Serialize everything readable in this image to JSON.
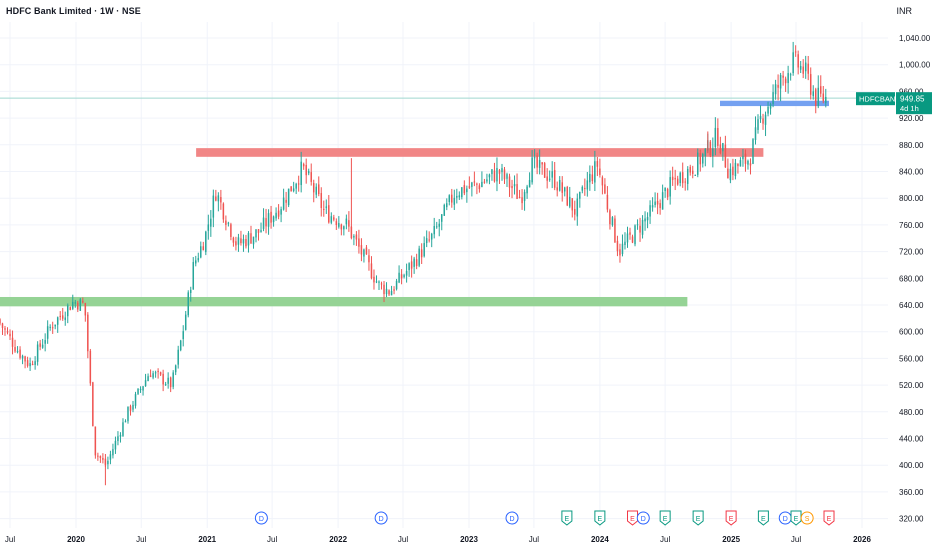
{
  "header": {
    "title": "HDFC Bank Limited · 1W · NSE",
    "currency": "INR"
  },
  "price_tag": {
    "symbol": "HDFCBANK",
    "price": "949.85",
    "countdown": "4d 1h"
  },
  "colors": {
    "up": "#26a69a",
    "down": "#ef5350",
    "resistance_zone": "#f08080",
    "support_zone": "#8fd18f",
    "blue_zone": "#6d9cf0",
    "price_tag": "#089981",
    "grid": "#f0f3fa"
  },
  "chart_data": {
    "type": "candlestick",
    "title": "HDFC Bank Limited · 1W · NSE",
    "ylim": [
      310,
      1070
    ],
    "y_ticks": [
      "1,040.00",
      "1,000.00",
      "960.00",
      "920.00",
      "880.00",
      "840.00",
      "800.00",
      "760.00",
      "720.00",
      "680.00",
      "640.00",
      "600.00",
      "560.00",
      "520.00",
      "480.00",
      "440.00",
      "400.00",
      "360.00",
      "320.00"
    ],
    "x_ticks": [
      {
        "label": "Jul",
        "date": "2019-07"
      },
      {
        "label": "2020",
        "date": "2020-01"
      },
      {
        "label": "Jul",
        "date": "2020-07"
      },
      {
        "label": "2021",
        "date": "2021-01"
      },
      {
        "label": "Jul",
        "date": "2021-07"
      },
      {
        "label": "2022",
        "date": "2022-01"
      },
      {
        "label": "Jul",
        "date": "2022-07"
      },
      {
        "label": "2023",
        "date": "2023-01"
      },
      {
        "label": "Jul",
        "date": "2023-07"
      },
      {
        "label": "2024",
        "date": "2024-01"
      },
      {
        "label": "Jul",
        "date": "2024-07"
      },
      {
        "label": "2025",
        "date": "2025-01"
      },
      {
        "label": "Jul",
        "date": "2025-07"
      },
      {
        "label": "2026",
        "date": "2026-01"
      }
    ],
    "anchors": [
      [
        "2019-06",
        620
      ],
      [
        "2019-08",
        570
      ],
      [
        "2019-09",
        550
      ],
      [
        "2019-11",
        610
      ],
      [
        "2020-01",
        645
      ],
      [
        "2020-02",
        640
      ],
      [
        "2020-03",
        420
      ],
      [
        "2020-04",
        400
      ],
      [
        "2020-06",
        480
      ],
      [
        "2020-08",
        540
      ],
      [
        "2020-10",
        520
      ],
      [
        "2020-11",
        600
      ],
      [
        "2020-12",
        700
      ],
      [
        "2021-01",
        740
      ],
      [
        "2021-02",
        810
      ],
      [
        "2021-04",
        730
      ],
      [
        "2021-06",
        750
      ],
      [
        "2021-08",
        790
      ],
      [
        "2021-10",
        845
      ],
      [
        "2021-12",
        780
      ],
      [
        "2022-02",
        760
      ],
      [
        "2022-04",
        700
      ],
      [
        "2022-05",
        670
      ],
      [
        "2022-06",
        660
      ],
      [
        "2022-08",
        700
      ],
      [
        "2022-10",
        745
      ],
      [
        "2022-12",
        810
      ],
      [
        "2023-02",
        820
      ],
      [
        "2023-04",
        840
      ],
      [
        "2023-06",
        800
      ],
      [
        "2023-07",
        850
      ],
      [
        "2023-09",
        830
      ],
      [
        "2023-11",
        780
      ],
      [
        "2023-12",
        820
      ],
      [
        "2024-01",
        850
      ],
      [
        "2024-03",
        720
      ],
      [
        "2024-04",
        740
      ],
      [
        "2024-06",
        780
      ],
      [
        "2024-08",
        825
      ],
      [
        "2024-10",
        850
      ],
      [
        "2024-11",
        870
      ],
      [
        "2024-12",
        895
      ],
      [
        "2025-01",
        840
      ],
      [
        "2025-02",
        850
      ],
      [
        "2025-03",
        860
      ],
      [
        "2025-04",
        920
      ],
      [
        "2025-06",
        980
      ],
      [
        "2025-07",
        1005
      ],
      [
        "2025-08",
        990
      ],
      [
        "2025-09",
        950
      ]
    ],
    "wick_spikes": [
      {
        "date": "2020-03-23",
        "low": 370
      },
      {
        "date": "2022-02-07",
        "high": 860
      },
      {
        "date": "2024-10-28",
        "high": 900
      }
    ],
    "zones": [
      {
        "name": "resistance",
        "from": "2020-12",
        "to": "2025-04",
        "low": 862,
        "high": 875
      },
      {
        "name": "support",
        "from": "2019-06",
        "to": "2024-09",
        "low": 638,
        "high": 652
      },
      {
        "name": "support-2",
        "from": "2024-12",
        "to": "2025-10",
        "low": 938,
        "high": 946
      }
    ],
    "last_price": 949.85,
    "events": [
      {
        "label": "D",
        "date": "2021-06",
        "kind": "dividend"
      },
      {
        "label": "D",
        "date": "2022-05",
        "kind": "dividend"
      },
      {
        "label": "D",
        "date": "2023-05",
        "kind": "dividend"
      },
      {
        "label": "E",
        "date": "2023-10",
        "kind": "earnings-up"
      },
      {
        "label": "E",
        "date": "2024-01",
        "kind": "earnings-up"
      },
      {
        "label": "E",
        "date": "2024-04",
        "kind": "earnings-down"
      },
      {
        "label": "D",
        "date": "2024-05",
        "kind": "dividend"
      },
      {
        "label": "E",
        "date": "2024-07",
        "kind": "earnings-up"
      },
      {
        "label": "E",
        "date": "2024-10",
        "kind": "earnings-up"
      },
      {
        "label": "E",
        "date": "2025-01",
        "kind": "earnings-down"
      },
      {
        "label": "E",
        "date": "2025-04",
        "kind": "earnings-up"
      },
      {
        "label": "D",
        "date": "2025-06",
        "kind": "dividend"
      },
      {
        "label": "E",
        "date": "2025-07",
        "kind": "earnings-up"
      },
      {
        "label": "S",
        "date": "2025-08",
        "kind": "split"
      },
      {
        "label": "E",
        "date": "2025-10",
        "kind": "earnings-down"
      }
    ]
  }
}
